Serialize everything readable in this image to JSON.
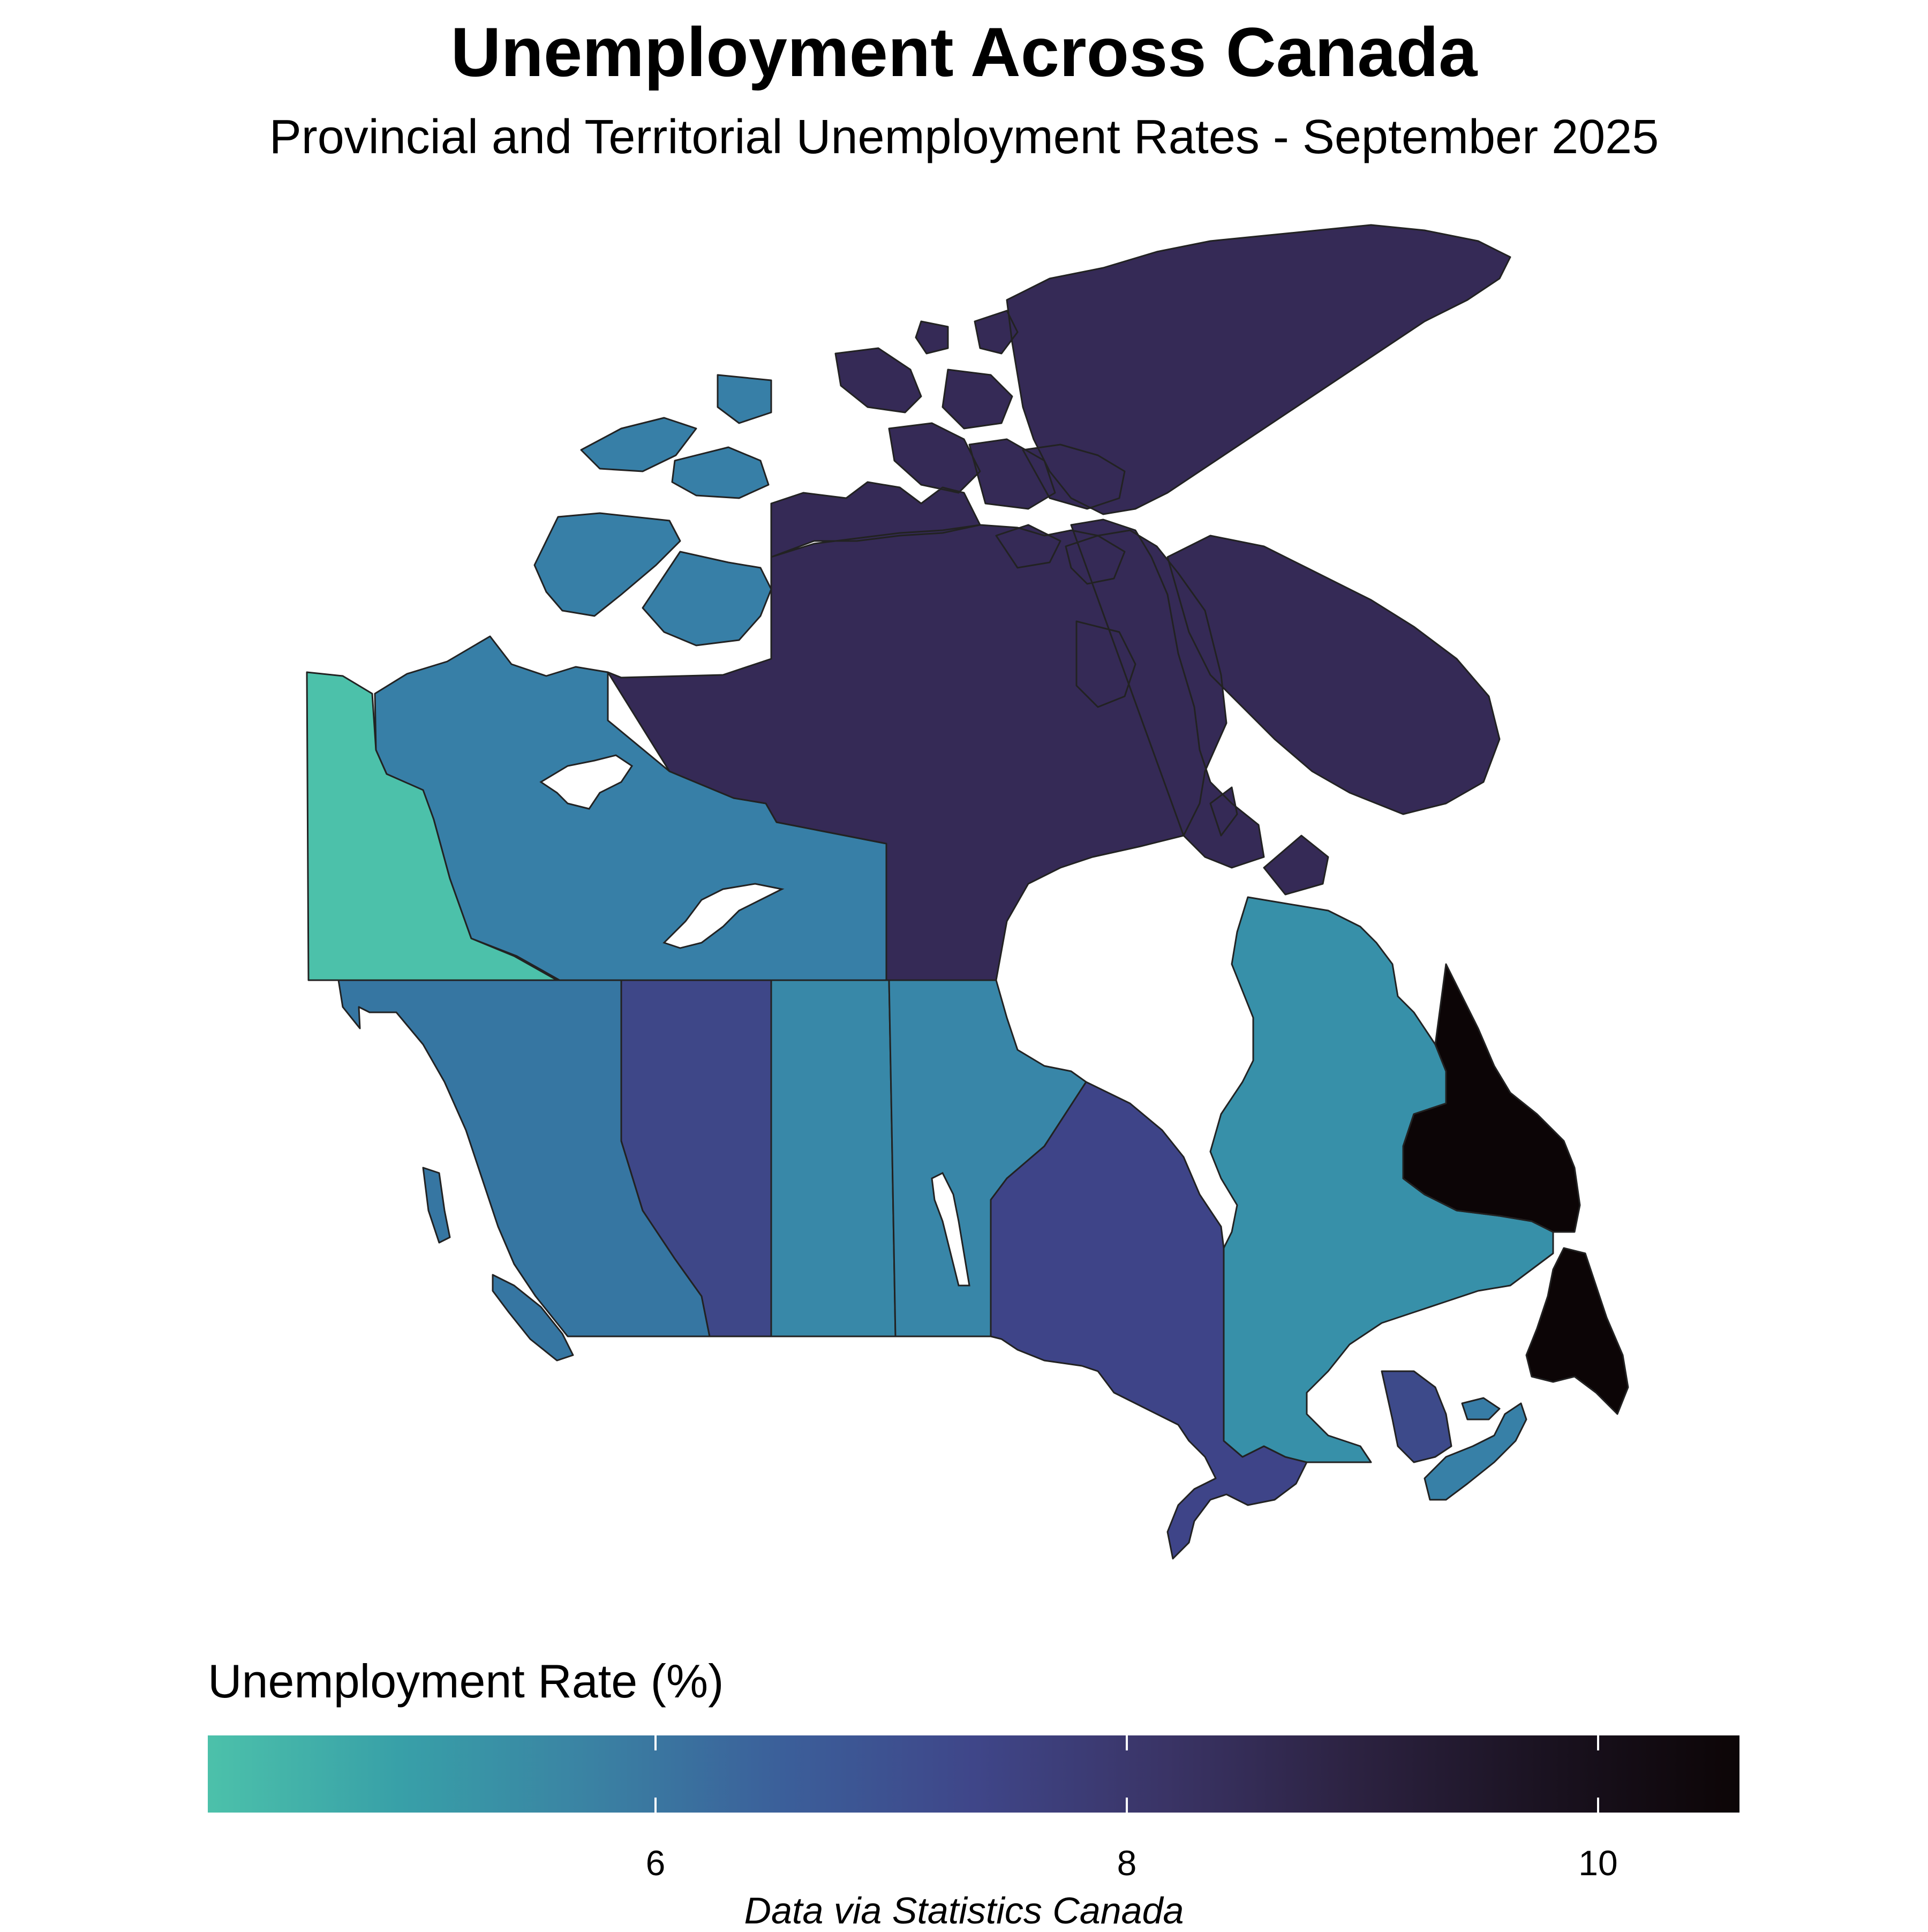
{
  "title": "Unemployment Across Canada",
  "subtitle": "Provincial and Territorial Unemployment Rates - September 2025",
  "caption": "Data via Statistics Canada",
  "legend": {
    "title": "Unemployment Rate (%)",
    "min": 4.1,
    "max": 10.6,
    "ticks": [
      6,
      8,
      10
    ],
    "tick_labels": [
      "6",
      "8",
      "10"
    ],
    "colors": [
      "#4cc1aa",
      "#38a0a8",
      "#3a82a3",
      "#3b5f9a",
      "#3f4689",
      "#3a3466",
      "#2c2241",
      "#1a1220",
      "#0c0506"
    ]
  },
  "regions": [
    {
      "name": "Yukon",
      "value": 4.1,
      "color": "#4cc1aa"
    },
    {
      "name": "Northwest Territories",
      "value": 6.1,
      "color": "#377fa7"
    },
    {
      "name": "Nunavut",
      "value": 8.9,
      "color": "#352a56"
    },
    {
      "name": "British Columbia",
      "value": 6.4,
      "color": "#3676a2"
    },
    {
      "name": "Alberta",
      "value": 7.8,
      "color": "#3e4788"
    },
    {
      "name": "Saskatchewan",
      "value": 5.9,
      "color": "#3888a8"
    },
    {
      "name": "Manitoba",
      "value": 6.0,
      "color": "#3886a8"
    },
    {
      "name": "Ontario",
      "value": 7.9,
      "color": "#3e4488"
    },
    {
      "name": "Quebec",
      "value": 5.7,
      "color": "#3790a9"
    },
    {
      "name": "New Brunswick",
      "value": 7.7,
      "color": "#3d4a8a"
    },
    {
      "name": "Nova Scotia",
      "value": 6.2,
      "color": "#3780a7"
    },
    {
      "name": "Prince Edward Island",
      "value": 6.3,
      "color": "#377ca6"
    },
    {
      "name": "Newfoundland and Labrador",
      "value": 10.6,
      "color": "#0c0506"
    }
  ]
}
